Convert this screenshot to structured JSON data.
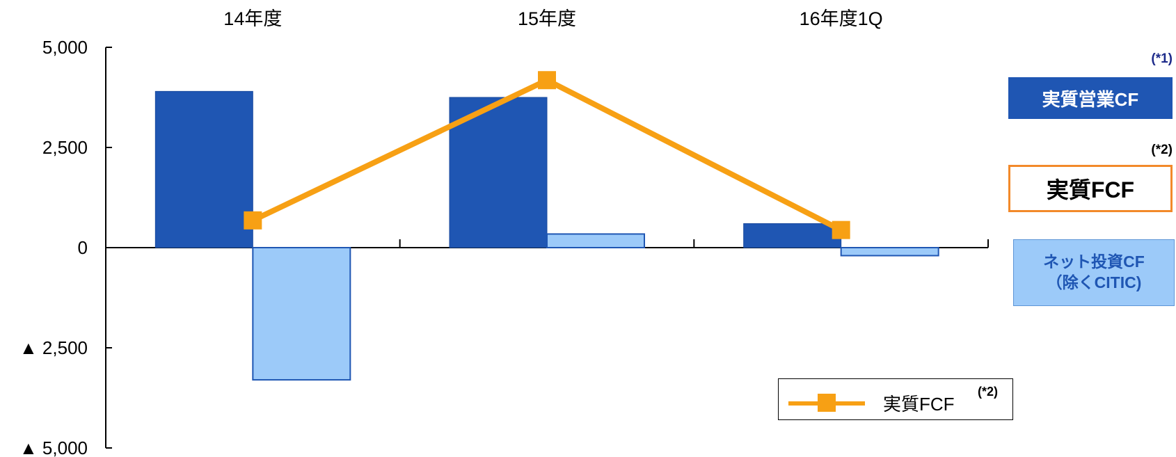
{
  "chart_data": {
    "type": "bar",
    "categories": [
      "14年度",
      "15年度",
      "16年度1Q"
    ],
    "yticks": [
      {
        "value": 5000,
        "label": "5,000"
      },
      {
        "value": 2500,
        "label": "2,500"
      },
      {
        "value": 0,
        "label": "0"
      },
      {
        "value": -2500,
        "label": "▲ 2,500"
      },
      {
        "value": -5000,
        "label": "▲ 5,000"
      }
    ],
    "ylim": [
      -5000,
      5000
    ],
    "series": [
      {
        "name": "実質営業CF",
        "kind": "bar",
        "color": "#1f56b3",
        "values": [
          3900,
          3750,
          600
        ]
      },
      {
        "name": "ネット投資CF（除くCITIC)",
        "kind": "bar",
        "color": "#9ccaf9",
        "values": [
          -3300,
          340,
          -200
        ]
      },
      {
        "name": "実質FCF",
        "kind": "line",
        "color": "#f7a014",
        "values": [
          680,
          4180,
          440
        ]
      }
    ],
    "legend": {
      "label": "実質FCF",
      "note": "(*2)",
      "placement": "bottom-right"
    }
  },
  "side_labels": {
    "operating": {
      "note": "(*1)",
      "label": "実質営業CF",
      "color": "#1f56b3"
    },
    "fcf": {
      "note": "(*2)",
      "label": "実質FCF",
      "color": "#f2892a"
    },
    "investment": {
      "line1": "ネット投資CF",
      "line2": "（除くCITIC)",
      "color": "#9ccaf9"
    }
  }
}
